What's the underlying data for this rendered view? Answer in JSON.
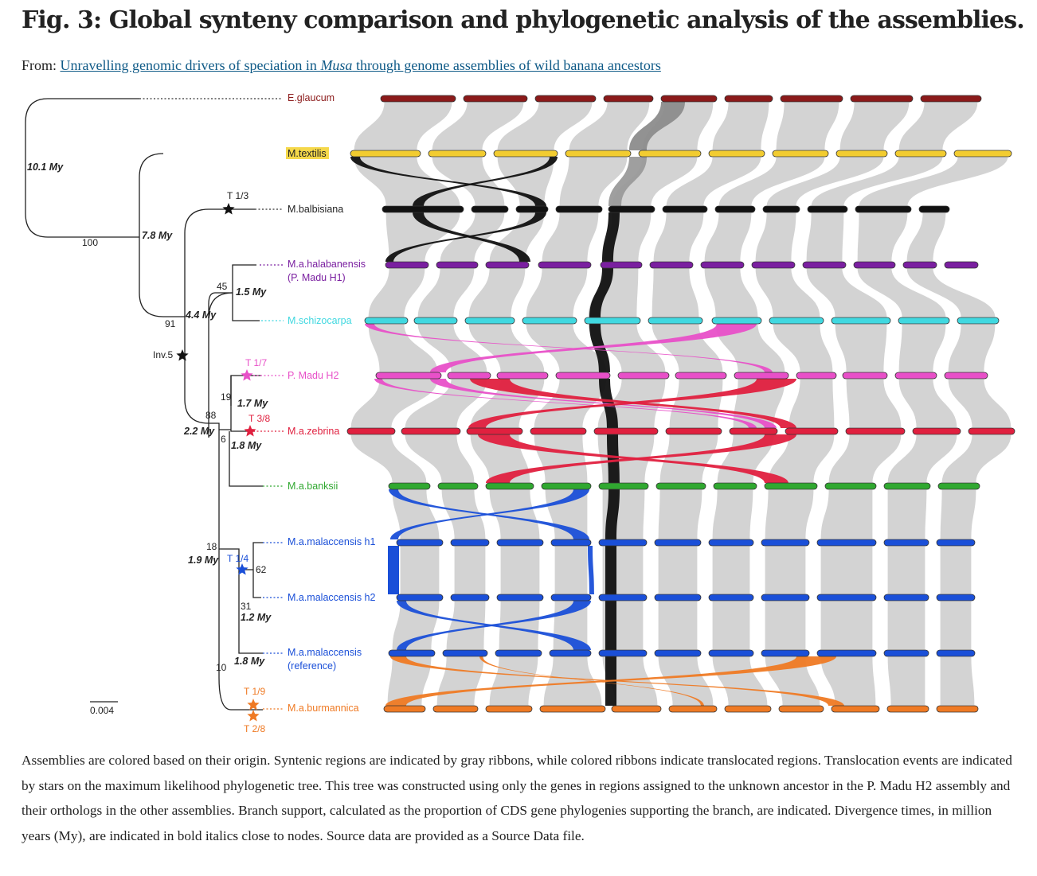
{
  "header": {
    "title": "Fig. 3: Global synteny comparison and phylogenetic analysis of the assemblies.",
    "from_label": "From:",
    "link_part1": "Unravelling genomic drivers of speciation in ",
    "link_italic": "Musa",
    "link_part2": " through genome assemblies of wild banana ancestors"
  },
  "figure": {
    "assemblies": [
      {
        "name": "E.glaucum",
        "color": "#8b1a1a"
      },
      {
        "name": "M.textilis",
        "color": "#f2cc30",
        "highlight": "#f5d84a"
      },
      {
        "name": "M.balbisiana",
        "color": "#111111"
      },
      {
        "name": "M.a.halabanensis",
        "name2": "(P. Madu H1)",
        "color": "#7a1fa0"
      },
      {
        "name": "M.schizocarpa",
        "color": "#40d8e0"
      },
      {
        "name": "P. Madu H2",
        "color": "#e850c8"
      },
      {
        "name": "M.a.zebrina",
        "color": "#e0203f"
      },
      {
        "name": "M.a.banksii",
        "color": "#30a830"
      },
      {
        "name": "M.a.malaccensis h1",
        "color": "#1a4fd8"
      },
      {
        "name": "M.a.malaccensis h2",
        "color": "#1a4fd8"
      },
      {
        "name": "M.a.malaccensis",
        "name2": "(reference)",
        "color": "#1a4fd8"
      },
      {
        "name": "M.a.burmannica",
        "color": "#ef7a24"
      }
    ],
    "divergence_times": [
      "10.1 My",
      "7.8 My",
      "4.4 My",
      "1.5 My",
      "2.2 My",
      "1.7 My",
      "1.8 My",
      "1.9 My",
      "1.2 My",
      "1.8 My"
    ],
    "support_values": [
      "100",
      "91",
      "45",
      "88",
      "19",
      "6",
      "18",
      "62",
      "31",
      "10"
    ],
    "events": [
      "T 1/3",
      "Inv.5",
      "T 1/7",
      "T 3/8",
      "T 1/4",
      "T 1/9",
      "T 2/8"
    ],
    "scale_bar": "0.004"
  },
  "caption": "Assemblies are colored based on their origin. Syntenic regions are indicated by gray ribbons, while colored ribbons indicate translocated regions. Translocation events are indicated by stars on the maximum likelihood phylogenetic tree. This tree was constructed using only the genes in regions assigned to the unknown ancestor in the P. Madu H2 assembly and their orthologs in the other assemblies. Branch support, calculated as the proportion of CDS gene phylogenies supporting the branch, are indicated. Divergence times, in million years (My), are indicated in bold italics close to nodes. Source data are provided as a Source Data file."
}
